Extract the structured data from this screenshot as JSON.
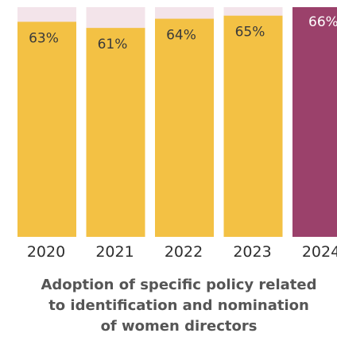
{
  "chart_data": {
    "type": "bar",
    "categories": [
      "2020",
      "2021",
      "2022",
      "2023",
      "2024"
    ],
    "values": [
      63,
      61,
      64,
      65,
      66
    ],
    "value_labels": [
      "63%",
      "61%",
      "64%",
      "65%",
      "66%"
    ],
    "unit": "%",
    "ylim": [
      0,
      100
    ],
    "highlight_index": 4,
    "title_lines": [
      "Adoption of specific policy related",
      "to identification and nomination",
      "of women directors"
    ],
    "grid": false,
    "colors": {
      "bar": "#F3C144",
      "highlight_bar": "#9B416B",
      "track": "#F3E4EA"
    }
  }
}
